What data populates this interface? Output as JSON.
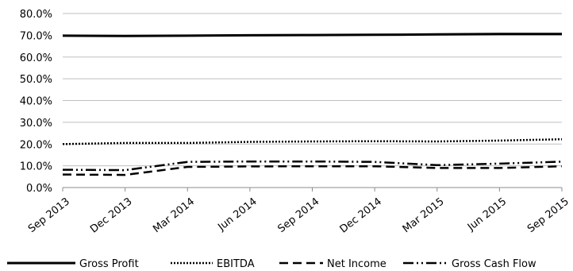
{
  "chart_data": {
    "type": "line",
    "title": "",
    "xlabel": "",
    "ylabel": "",
    "categories": [
      "Sep 2013",
      "Dec 2013",
      "Mar 2014",
      "Jun 2014",
      "Sep 2014",
      "Dec 2014",
      "Mar 2015",
      "Jun 2015",
      "Sep 2015"
    ],
    "y_ticks": [
      "0.0%",
      "10.0%",
      "20.0%",
      "30.0%",
      "40.0%",
      "50.0%",
      "60.0%",
      "70.0%",
      "80.0%"
    ],
    "ylim": [
      0,
      80
    ],
    "grid": "horizontal",
    "legend_position": "bottom",
    "series": [
      {
        "name": "Gross Profit",
        "style": "solid",
        "color": "#000000",
        "values": [
          69.8,
          69.7,
          69.8,
          70.0,
          70.1,
          70.2,
          70.4,
          70.6,
          70.6
        ]
      },
      {
        "name": "EBITDA",
        "style": "dotted",
        "color": "#000000",
        "values": [
          20.0,
          20.5,
          20.5,
          21.0,
          21.2,
          21.3,
          21.2,
          21.6,
          22.2
        ]
      },
      {
        "name": "Net Income",
        "style": "dashed",
        "color": "#000000",
        "values": [
          6.0,
          5.8,
          9.5,
          9.7,
          9.8,
          9.8,
          9.0,
          9.0,
          9.8
        ]
      },
      {
        "name": "Gross Cash Flow",
        "style": "dash-dot-dot",
        "color": "#000000",
        "values": [
          8.2,
          8.0,
          11.8,
          12.0,
          12.0,
          11.8,
          10.3,
          11.0,
          11.9
        ]
      }
    ]
  }
}
